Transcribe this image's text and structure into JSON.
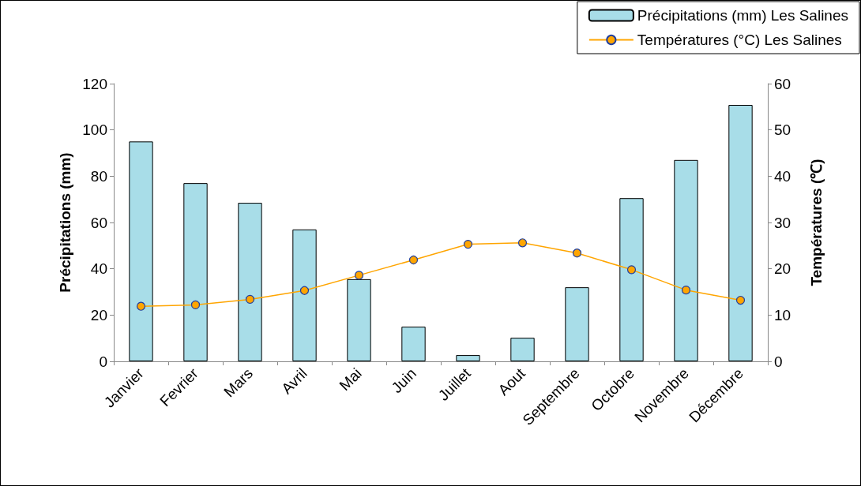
{
  "chart_data": {
    "type": "bar",
    "categories": [
      "Janvier",
      "Fevrier",
      "Mars",
      "Avril",
      "Mai",
      "Juin",
      "Juillet",
      "Aout",
      "Septembre",
      "Octobre",
      "Novembre",
      "Décembre"
    ],
    "series": [
      {
        "name": "Précipitations (mm) Les Salines",
        "color": "#a8dde8",
        "values": [
          95,
          77,
          68.5,
          57,
          35.5,
          15,
          2.7,
          10.2,
          32,
          70.5,
          87,
          110.8
        ]
      },
      {
        "name": "Températures (°C) Les Salines",
        "type": "line",
        "axis": "y2",
        "color": "#ffa500",
        "values": [
          11.9,
          12.2,
          13.4,
          15.3,
          18.6,
          21.9,
          25.3,
          25.6,
          23.4,
          19.8,
          15.4,
          13.2
        ]
      }
    ],
    "ylabel": "Précipitations (mm)",
    "y2label": "Températures (℃)",
    "ylim": [
      0,
      120
    ],
    "yticks": [
      0,
      20,
      40,
      60,
      80,
      100,
      120
    ],
    "y2lim": [
      0,
      60
    ],
    "y2ticks": [
      0,
      10,
      20,
      30,
      40,
      50,
      60
    ],
    "grid": false,
    "legend": "top right",
    "marker": "circle"
  }
}
